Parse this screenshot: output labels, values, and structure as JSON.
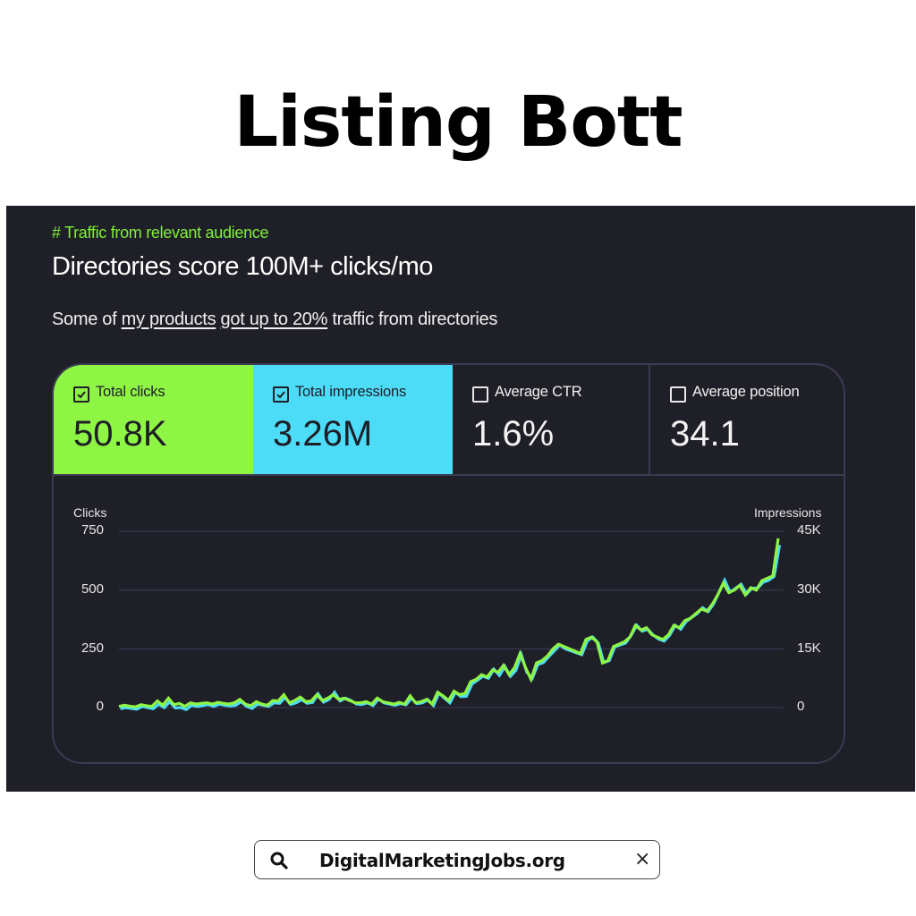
{
  "page": {
    "title": "Listing Bott"
  },
  "panel": {
    "eyebrow": "# Traffic from relevant audience",
    "headline": "Directories score 100M+ clicks/mo",
    "subline": {
      "prefix": "Some of ",
      "link1": "my products",
      "space": " ",
      "link2": "got up to 20%",
      "suffix": " traffic from directories"
    }
  },
  "metrics": [
    {
      "label": "Total clicks",
      "value": "50.8K",
      "checked": true,
      "color": "#8ef544"
    },
    {
      "label": "Total impressions",
      "value": "3.26M",
      "checked": true,
      "color": "#4ddcf8"
    },
    {
      "label": "Average CTR",
      "value": "1.6%",
      "checked": false
    },
    {
      "label": "Average position",
      "value": "34.1",
      "checked": false
    }
  ],
  "search_bar": {
    "icon": "search-icon",
    "text": "DigitalMarketingJobs.org",
    "close_icon": "close-icon",
    "close_glyph": "×"
  },
  "chart_data": {
    "type": "line",
    "title": "",
    "ylabel": "Clicks",
    "y2label": "Impressions",
    "ylim": [
      0,
      750
    ],
    "y2lim": [
      0,
      45000
    ],
    "yticks": [
      "0",
      "250",
      "500",
      "750"
    ],
    "y2ticks": [
      "0",
      "15K",
      "30K",
      "45K"
    ],
    "grid": true,
    "legend": "none",
    "series": [
      {
        "name": "Total clicks",
        "color": "#8ef544",
        "axis": "left",
        "values": [
          5,
          10,
          6,
          3,
          12,
          8,
          5,
          28,
          10,
          40,
          12,
          18,
          5,
          20,
          15,
          18,
          20,
          15,
          22,
          18,
          15,
          20,
          35,
          15,
          8,
          25,
          15,
          10,
          30,
          28,
          55,
          20,
          30,
          45,
          25,
          28,
          55,
          30,
          40,
          55,
          35,
          40,
          30,
          20,
          20,
          25,
          15,
          40,
          25,
          20,
          15,
          22,
          15,
          50,
          20,
          25,
          35,
          15,
          65,
          50,
          30,
          70,
          55,
          60,
          110,
          120,
          140,
          130,
          160,
          150,
          180,
          140,
          170,
          230,
          170,
          120,
          190,
          200,
          220,
          250,
          270,
          260,
          250,
          240,
          230,
          290,
          300,
          280,
          190,
          200,
          260,
          270,
          280,
          300,
          350,
          330,
          340,
          310,
          300,
          290,
          310,
          350,
          340,
          370,
          380,
          400,
          420,
          410,
          440,
          480,
          530,
          490,
          500,
          520,
          480,
          510,
          500,
          540,
          550,
          560,
          720
        ]
      },
      {
        "name": "Total impressions",
        "color": "#4ddcf8",
        "axis": "right",
        "values": [
          -300,
          0,
          -200,
          -400,
          300,
          0,
          -300,
          900,
          0,
          1500,
          -100,
          0,
          -500,
          600,
          300,
          500,
          800,
          300,
          900,
          600,
          400,
          600,
          1500,
          300,
          -200,
          900,
          600,
          300,
          1200,
          1100,
          2600,
          800,
          1200,
          2000,
          1100,
          1300,
          3500,
          1400,
          2100,
          3900,
          1700,
          2400,
          1800,
          900,
          800,
          1200,
          500,
          2200,
          1200,
          900,
          600,
          1000,
          700,
          2400,
          1000,
          1200,
          2000,
          500,
          3700,
          2400,
          1200,
          3900,
          2800,
          2900,
          6000,
          7000,
          8000,
          7500,
          9800,
          8200,
          10500,
          8000,
          9500,
          13500,
          9000,
          7500,
          11000,
          11500,
          13000,
          14500,
          16000,
          15000,
          14500,
          14000,
          13500,
          17000,
          18000,
          16500,
          11500,
          12000,
          15500,
          16000,
          16500,
          18500,
          21000,
          19500,
          20000,
          18500,
          17500,
          17000,
          18500,
          21000,
          20000,
          22000,
          23000,
          24000,
          25500,
          24500,
          26500,
          29500,
          32500,
          29500,
          30500,
          31500,
          29000,
          30500,
          30500,
          32000,
          32500,
          33500,
          41500
        ]
      }
    ]
  }
}
